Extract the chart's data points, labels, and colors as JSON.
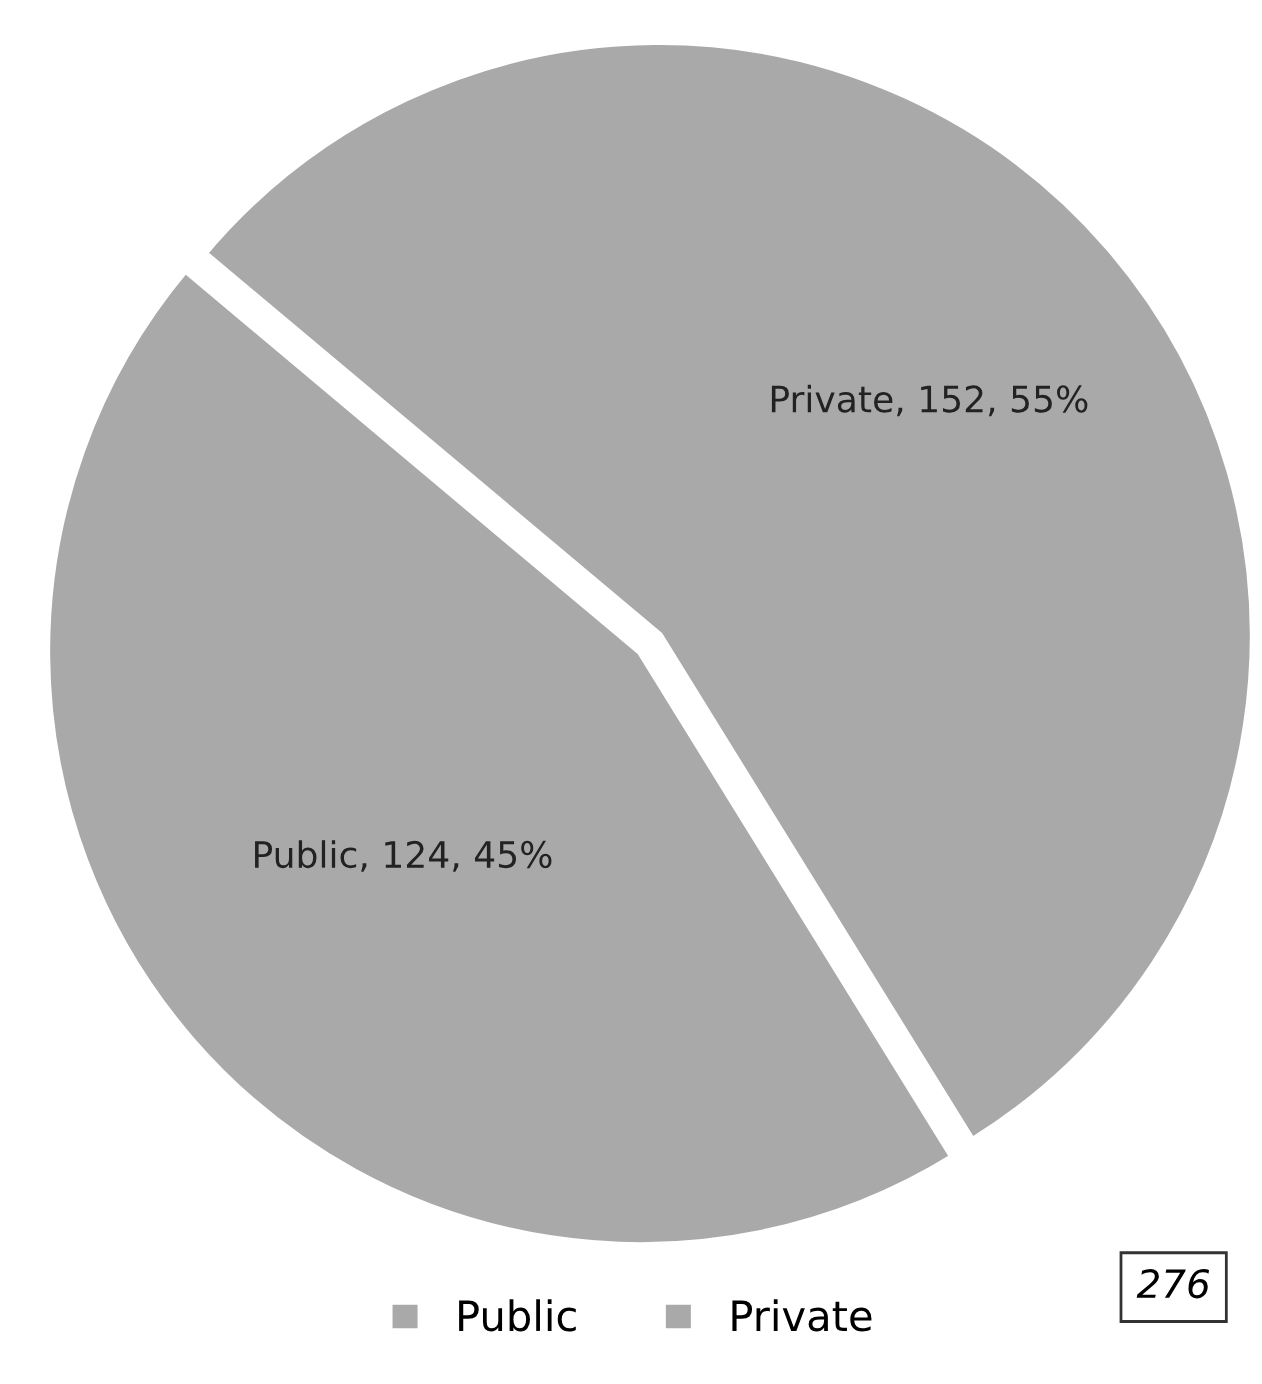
{
  "chart_data": {
    "type": "pie",
    "categories": [
      "Public",
      "Private"
    ],
    "values": [
      124,
      152
    ],
    "colors": [
      "#a9a9a9",
      "#a9a9a9"
    ],
    "value_labels": [
      "Public, 124, 45%",
      "Private, 152, 55%"
    ],
    "annotations": [
      "276"
    ],
    "legend": "bottom"
  }
}
